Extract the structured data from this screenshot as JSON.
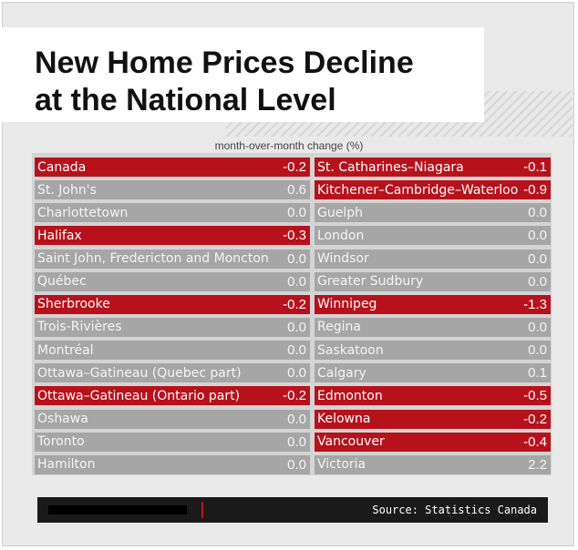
{
  "title_lines": [
    "New Home Prices Decline",
    "at the National Level"
  ],
  "subtitle": "month-over-month change (%)",
  "source": "Source: Statistics Canada",
  "colors": {
    "negative": "#b7121c",
    "non_negative": "#a6a6a6",
    "background": "#e9e9e9"
  },
  "chart_data": {
    "type": "table",
    "title": "New Home Prices Decline at the National Level",
    "value_label": "month-over-month change (%)",
    "columns": [
      [
        {
          "name": "Canada",
          "value": -0.2
        },
        {
          "name": "St. John's",
          "value": 0.6
        },
        {
          "name": "Charlottetown",
          "value": 0.0
        },
        {
          "name": "Halifax",
          "value": -0.3
        },
        {
          "name": "Saint John, Fredericton and Moncton",
          "value": 0.0
        },
        {
          "name": "Québec",
          "value": 0.0
        },
        {
          "name": "Sherbrooke",
          "value": -0.2
        },
        {
          "name": "Trois-Rivières",
          "value": 0.0
        },
        {
          "name": "Montréal",
          "value": 0.0
        },
        {
          "name": "Ottawa–Gatineau (Quebec part)",
          "value": 0.0
        },
        {
          "name": "Ottawa–Gatineau (Ontario part)",
          "value": -0.2
        },
        {
          "name": "Oshawa",
          "value": 0.0
        },
        {
          "name": "Toronto",
          "value": 0.0
        },
        {
          "name": "Hamilton",
          "value": 0.0
        }
      ],
      [
        {
          "name": "St. Catharines–Niagara",
          "value": -0.1
        },
        {
          "name": "Kitchener–Cambridge–Waterloo",
          "value": -0.9
        },
        {
          "name": "Guelph",
          "value": 0.0
        },
        {
          "name": "London",
          "value": 0.0
        },
        {
          "name": "Windsor",
          "value": 0.0
        },
        {
          "name": "Greater Sudbury",
          "value": 0.0
        },
        {
          "name": "Winnipeg",
          "value": -1.3
        },
        {
          "name": "Regina",
          "value": 0.0
        },
        {
          "name": "Saskatoon",
          "value": 0.0
        },
        {
          "name": "Calgary",
          "value": 0.1
        },
        {
          "name": "Edmonton",
          "value": -0.5
        },
        {
          "name": "Kelowna",
          "value": -0.2
        },
        {
          "name": "Vancouver",
          "value": -0.4
        },
        {
          "name": "Victoria",
          "value": 2.2
        }
      ]
    ]
  }
}
